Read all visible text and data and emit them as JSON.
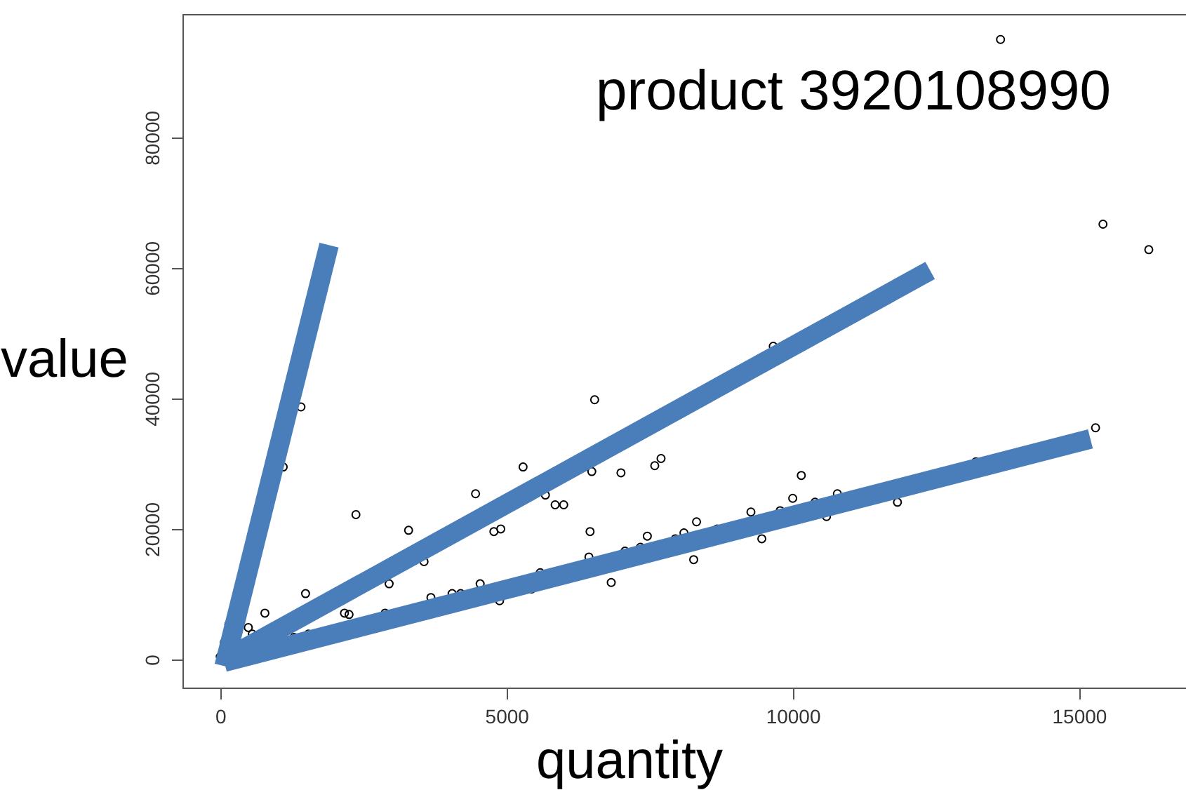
{
  "chart_data": {
    "type": "scatter",
    "xlabel": "quantity",
    "ylabel": "value",
    "annotations": [
      "product 3920108990"
    ],
    "xlim": [
      -660,
      16870
    ],
    "ylim": [
      -4300,
      98900
    ],
    "xticks": [
      0,
      5000,
      10000,
      15000
    ],
    "yticks": [
      0,
      20000,
      40000,
      60000,
      80000
    ],
    "grid": false,
    "marker": "circle",
    "series": [
      {
        "color": "#000000",
        "x": [
          13630,
          15420,
          16220,
          15290,
          13200,
          9660,
          6540,
          1410,
          1100,
          5290,
          2370,
          3290,
          4460,
          4780,
          4900,
          6460,
          6440,
          5680,
          5850,
          6000,
          6490,
          7000,
          7590,
          7700,
          1490,
          2950,
          3560,
          780,
          2170,
          2250,
          2880,
          3680,
          4050,
          4200,
          4540,
          5590,
          4880,
          5440,
          150,
          490,
          560,
          1540,
          1290,
          70,
          0,
          6830,
          7070,
          7340,
          7460,
          7950,
          8100,
          8320,
          8270,
          8680,
          9270,
          9460,
          9780,
          10000,
          10150,
          10390,
          10590,
          10780,
          11830
        ],
        "values": [
          95000,
          66700,
          62800,
          35500,
          30300,
          48000,
          39800,
          38700,
          29500,
          29500,
          22200,
          19800,
          25400,
          19600,
          20000,
          19600,
          15700,
          25200,
          23700,
          23700,
          28800,
          28600,
          29700,
          30800,
          10100,
          11600,
          15000,
          7100,
          7100,
          6900,
          7100,
          9500,
          10100,
          10100,
          11600,
          13300,
          9000,
          10800,
          5400,
          4900,
          3900,
          3900,
          3400,
          2600,
          430,
          11800,
          16600,
          17200,
          18900,
          18500,
          19400,
          21100,
          15300,
          20000,
          22600,
          18500,
          22800,
          24700,
          28200,
          24100,
          21900,
          25400,
          24100
        ]
      },
      {
        "type": "line",
        "marker": "none",
        "color": "#4a7ebb",
        "x": [
          70,
          1900
        ],
        "values": [
          -1000,
          63500
        ]
      },
      {
        "type": "line",
        "marker": "none",
        "color": "#4a7ebb",
        "x": [
          70,
          12400
        ],
        "values": [
          0,
          59600
        ]
      },
      {
        "type": "line",
        "marker": "none",
        "color": "#4a7ebb",
        "x": [
          70,
          15200
        ],
        "values": [
          -400,
          33800
        ]
      }
    ]
  }
}
